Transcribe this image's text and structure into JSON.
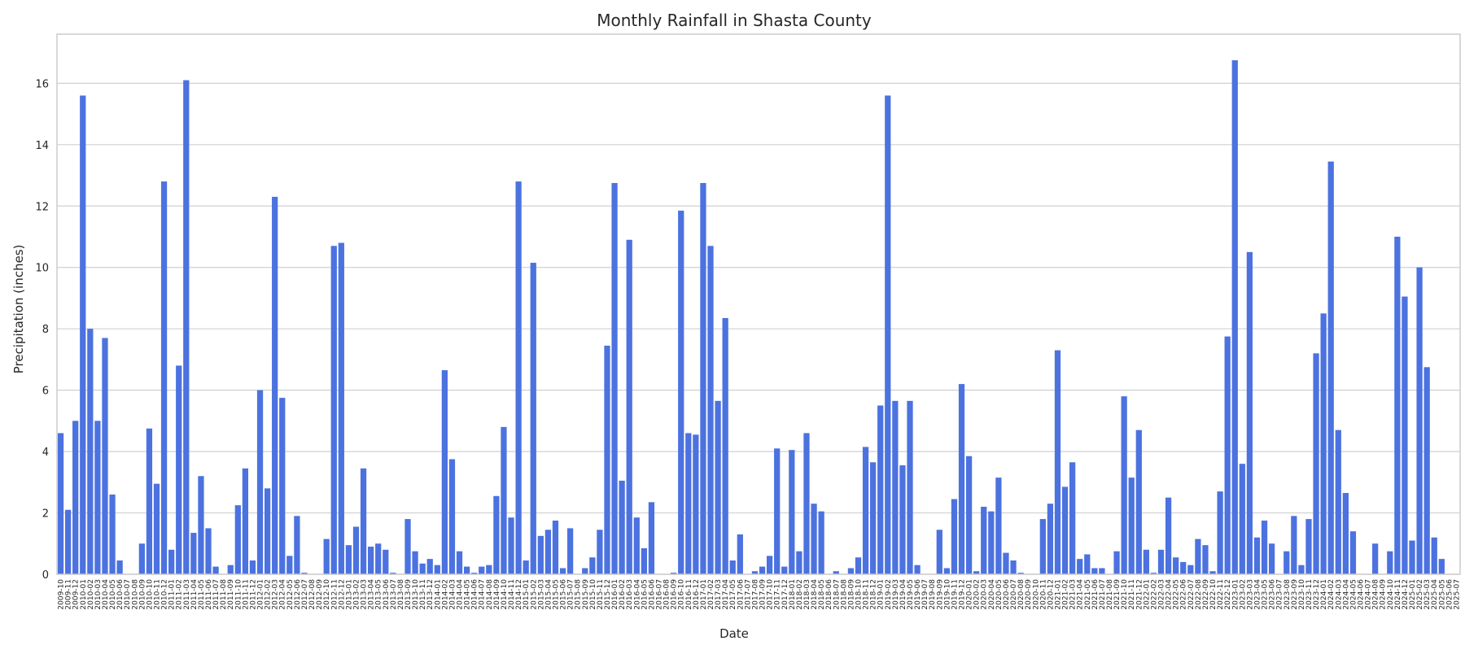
{
  "chart_data": {
    "type": "bar",
    "title": "Monthly Rainfall in Shasta County",
    "xlabel": "Date",
    "ylabel": "Precipitation (inches)",
    "ylim": [
      0,
      17.6
    ],
    "yticks": [
      0,
      2,
      4,
      6,
      8,
      10,
      12,
      14,
      16
    ],
    "grid": "horizontal",
    "legend": "none",
    "bar_color": "#4c72e0",
    "categories": [
      "2009-10",
      "2009-11",
      "2009-12",
      "2010-01",
      "2010-02",
      "2010-03",
      "2010-04",
      "2010-05",
      "2010-06",
      "2010-07",
      "2010-08",
      "2010-09",
      "2010-10",
      "2010-11",
      "2010-12",
      "2011-01",
      "2011-02",
      "2011-03",
      "2011-04",
      "2011-05",
      "2011-06",
      "2011-07",
      "2011-08",
      "2011-09",
      "2011-10",
      "2011-11",
      "2011-12",
      "2012-01",
      "2012-02",
      "2012-03",
      "2012-04",
      "2012-05",
      "2012-06",
      "2012-07",
      "2012-08",
      "2012-09",
      "2012-10",
      "2012-11",
      "2012-12",
      "2013-01",
      "2013-02",
      "2013-03",
      "2013-04",
      "2013-05",
      "2013-06",
      "2013-07",
      "2013-08",
      "2013-09",
      "2013-10",
      "2013-11",
      "2013-12",
      "2014-01",
      "2014-02",
      "2014-03",
      "2014-04",
      "2014-05",
      "2014-06",
      "2014-07",
      "2014-08",
      "2014-09",
      "2014-10",
      "2014-11",
      "2014-12",
      "2015-01",
      "2015-02",
      "2015-03",
      "2015-04",
      "2015-05",
      "2015-06",
      "2015-07",
      "2015-08",
      "2015-09",
      "2015-10",
      "2015-11",
      "2015-12",
      "2016-01",
      "2016-02",
      "2016-03",
      "2016-04",
      "2016-05",
      "2016-06",
      "2016-07",
      "2016-08",
      "2016-09",
      "2016-10",
      "2016-11",
      "2016-12",
      "2017-01",
      "2017-02",
      "2017-03",
      "2017-04",
      "2017-05",
      "2017-06",
      "2017-07",
      "2017-08",
      "2017-09",
      "2017-10",
      "2017-11",
      "2017-12",
      "2018-01",
      "2018-02",
      "2018-03",
      "2018-04",
      "2018-05",
      "2018-06",
      "2018-07",
      "2018-08",
      "2018-09",
      "2018-10",
      "2018-11",
      "2018-12",
      "2019-01",
      "2019-02",
      "2019-03",
      "2019-04",
      "2019-05",
      "2019-06",
      "2019-07",
      "2019-08",
      "2019-09",
      "2019-10",
      "2019-11",
      "2019-12",
      "2020-01",
      "2020-02",
      "2020-03",
      "2020-04",
      "2020-05",
      "2020-06",
      "2020-07",
      "2020-08",
      "2020-09",
      "2020-10",
      "2020-11",
      "2020-12",
      "2021-01",
      "2021-02",
      "2021-03",
      "2021-04",
      "2021-05",
      "2021-06",
      "2021-07",
      "2021-08",
      "2021-09",
      "2021-10",
      "2021-11",
      "2021-12",
      "2022-01",
      "2022-02",
      "2022-03",
      "2022-04",
      "2022-05",
      "2022-06",
      "2022-07",
      "2022-08",
      "2022-09",
      "2022-10",
      "2022-11",
      "2022-12",
      "2023-01",
      "2023-02",
      "2023-03",
      "2023-04",
      "2023-05",
      "2023-06",
      "2023-07",
      "2023-08",
      "2023-09",
      "2023-10",
      "2023-11",
      "2023-12",
      "2024-01",
      "2024-02",
      "2024-03",
      "2024-04",
      "2024-05",
      "2024-06",
      "2024-07",
      "2024-08",
      "2024-09",
      "2024-10",
      "2024-11",
      "2024-12",
      "2025-01",
      "2025-02",
      "2025-03",
      "2025-04",
      "2025-05",
      "2025-06",
      "2025-07"
    ],
    "values": [
      4.6,
      2.1,
      5.0,
      15.6,
      8.0,
      5.0,
      7.7,
      2.6,
      0.45,
      0.0,
      0.0,
      1.0,
      4.75,
      2.95,
      12.8,
      0.8,
      6.8,
      16.1,
      1.35,
      3.2,
      1.5,
      0.25,
      0.0,
      0.3,
      2.25,
      3.45,
      0.45,
      6.0,
      2.8,
      12.3,
      5.75,
      0.6,
      1.9,
      0.05,
      0.0,
      0.0,
      1.15,
      10.7,
      10.8,
      0.95,
      1.55,
      3.45,
      0.9,
      1.0,
      0.8,
      0.05,
      0.0,
      1.8,
      0.75,
      0.35,
      0.5,
      0.3,
      6.65,
      3.75,
      0.75,
      0.25,
      0.05,
      0.25,
      0.3,
      2.55,
      4.8,
      1.85,
      12.8,
      0.45,
      10.15,
      1.25,
      1.45,
      1.75,
      0.2,
      1.5,
      0.0,
      0.2,
      0.55,
      1.45,
      7.45,
      12.75,
      3.05,
      10.9,
      1.85,
      0.85,
      2.35,
      0.0,
      0.0,
      0.05,
      11.85,
      4.6,
      4.55,
      12.75,
      10.7,
      5.65,
      8.35,
      0.45,
      1.3,
      0.0,
      0.1,
      0.25,
      0.6,
      4.1,
      0.25,
      4.05,
      0.75,
      4.6,
      2.3,
      2.05,
      0.0,
      0.1,
      0.0,
      0.2,
      0.55,
      4.15,
      3.65,
      5.5,
      15.6,
      5.65,
      3.55,
      5.65,
      0.3,
      0.0,
      0.0,
      1.45,
      0.2,
      2.45,
      6.2,
      3.85,
      0.1,
      2.2,
      2.05,
      3.15,
      0.7,
      0.45,
      0.05,
      0.0,
      0.0,
      1.8,
      2.3,
      7.3,
      2.85,
      3.65,
      0.5,
      0.65,
      0.2,
      0.2,
      0.0,
      0.75,
      5.8,
      3.15,
      4.7,
      0.8,
      0.05,
      0.8,
      2.5,
      0.55,
      0.4,
      0.3,
      1.15,
      0.95,
      0.1,
      2.7,
      7.75,
      16.75,
      3.6,
      10.5,
      1.2,
      1.75,
      1.0,
      0.0,
      0.75,
      1.9,
      0.3,
      1.8,
      7.2,
      8.5,
      13.45,
      4.7,
      2.65,
      1.4,
      0.0,
      0.0,
      1.0,
      0.0,
      0.75,
      11.0,
      9.05,
      1.1,
      10.0,
      6.75,
      1.2,
      0.5,
      0.0,
      0.0
    ]
  }
}
